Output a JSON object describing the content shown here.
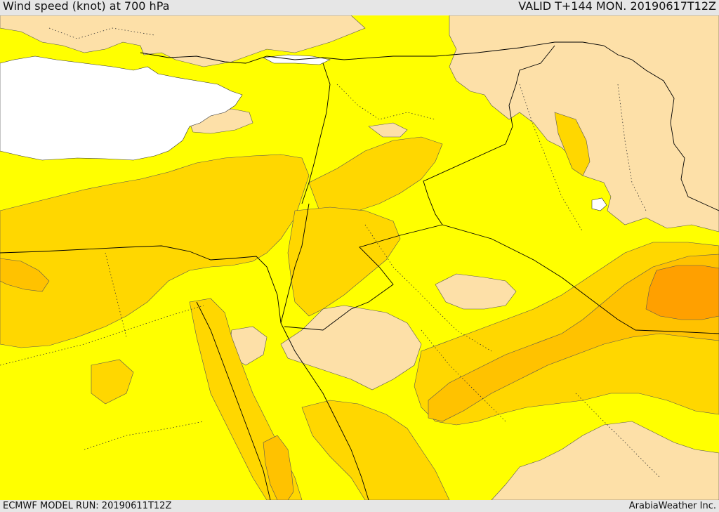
{
  "header": {
    "title": "Wind speed (knot) at 700 hPa",
    "valid": "VALID T+144 MON. 20190617T12Z"
  },
  "footer": {
    "model_run": "ECMWF MODEL RUN: 20190611T12Z",
    "credit": "ArabiaWeather Inc."
  },
  "colors": {
    "sea": "#ffffff",
    "light_wind": "#fde0a8",
    "base_wind": "#ffff00",
    "moderate_wind": "#ffd700",
    "strong_wind": "#ffc200",
    "strongest_wind": "#ffa000",
    "border_line": "#000000"
  }
}
